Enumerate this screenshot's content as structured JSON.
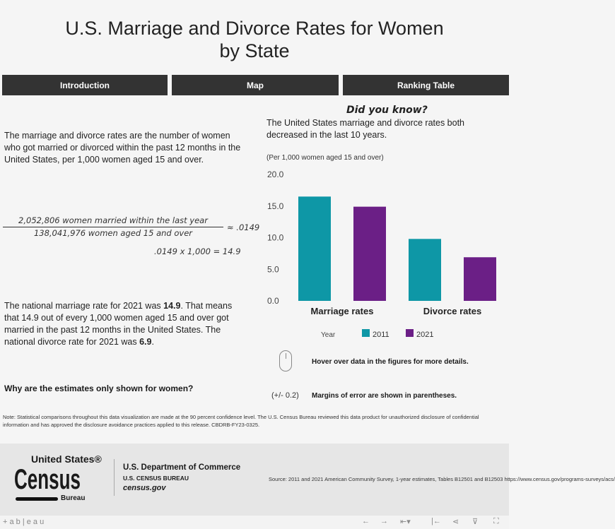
{
  "title_line1": "U.S. Marriage and Divorce Rates for Women",
  "title_line2": "by State",
  "tabs": [
    {
      "label": "Introduction"
    },
    {
      "label": "Map"
    },
    {
      "label": "Ranking Table"
    }
  ],
  "intro": {
    "definition": "The marriage and divorce rates are the number of women who got married or divorced within the past 12 months in the United States, per 1,000 women aged 15 and over.",
    "numerator": "2,052,806 women married within the last year",
    "denominator": "138,041,976 women aged 15 and over",
    "approx": "≈ .0149",
    "multiply": ".0149 x 1,000 = 14.9",
    "national_pre": "The national marriage rate for 2021 was ",
    "national_rate": "14.9",
    "national_mid": ". That means that 14.9 out of every 1,000 women aged 15 and over got married in the past 12 months in the United States. The national divorce rate for 2021 was ",
    "divorce_rate": "6.9",
    "national_end": ".",
    "why_link": "Why are the estimates only shown for women?"
  },
  "did_you_know": {
    "heading": "Did you know?",
    "text": "The United States marriage and divorce rates both decreased in the last 10 years."
  },
  "chart_data": {
    "type": "bar",
    "subtitle": "(Per 1,000 women aged 15 and over)",
    "categories": [
      "Marriage rates",
      "Divorce rates"
    ],
    "series": [
      {
        "name": "2011",
        "color": "#0e97a6",
        "values": [
          16.5,
          9.8
        ]
      },
      {
        "name": "2021",
        "color": "#6b1f86",
        "values": [
          14.9,
          6.9
        ]
      }
    ],
    "yticks": [
      "0.0",
      "5.0",
      "10.0",
      "15.0",
      "20.0"
    ],
    "ylim": [
      0,
      20
    ],
    "legend_title": "Year",
    "legend_placement": "bottom",
    "grid": false
  },
  "hints": {
    "hover": "Hover over data in the figures for more details.",
    "moe_symbol": "(+/- 0.2)",
    "moe": "Margins of error are shown in parentheses."
  },
  "note": "Note: Statistical comparisons throughout this data visualization are made at the 90 percent confidence level. The U.S. Census Bureau reviewed this data product for unauthorized disclosure of confidential information and has approved the disclosure avoidance practices applied to this release. CBDRB-FY23-0325.",
  "footer": {
    "logo_top": "United States®",
    "logo_main": "Census",
    "logo_bottom": "Bureau",
    "dept": "U.S. Department of Commerce",
    "bureau": "U.S. CENSUS BUREAU",
    "site": "census.gov",
    "source": "Source: 2011 and 2021 American Community Survey, 1-year estimates, Tables B12501 and B12503 https://www.census.gov/programs-surveys/acs/"
  },
  "toolbar": {
    "brand": "+ a b | e a u"
  }
}
